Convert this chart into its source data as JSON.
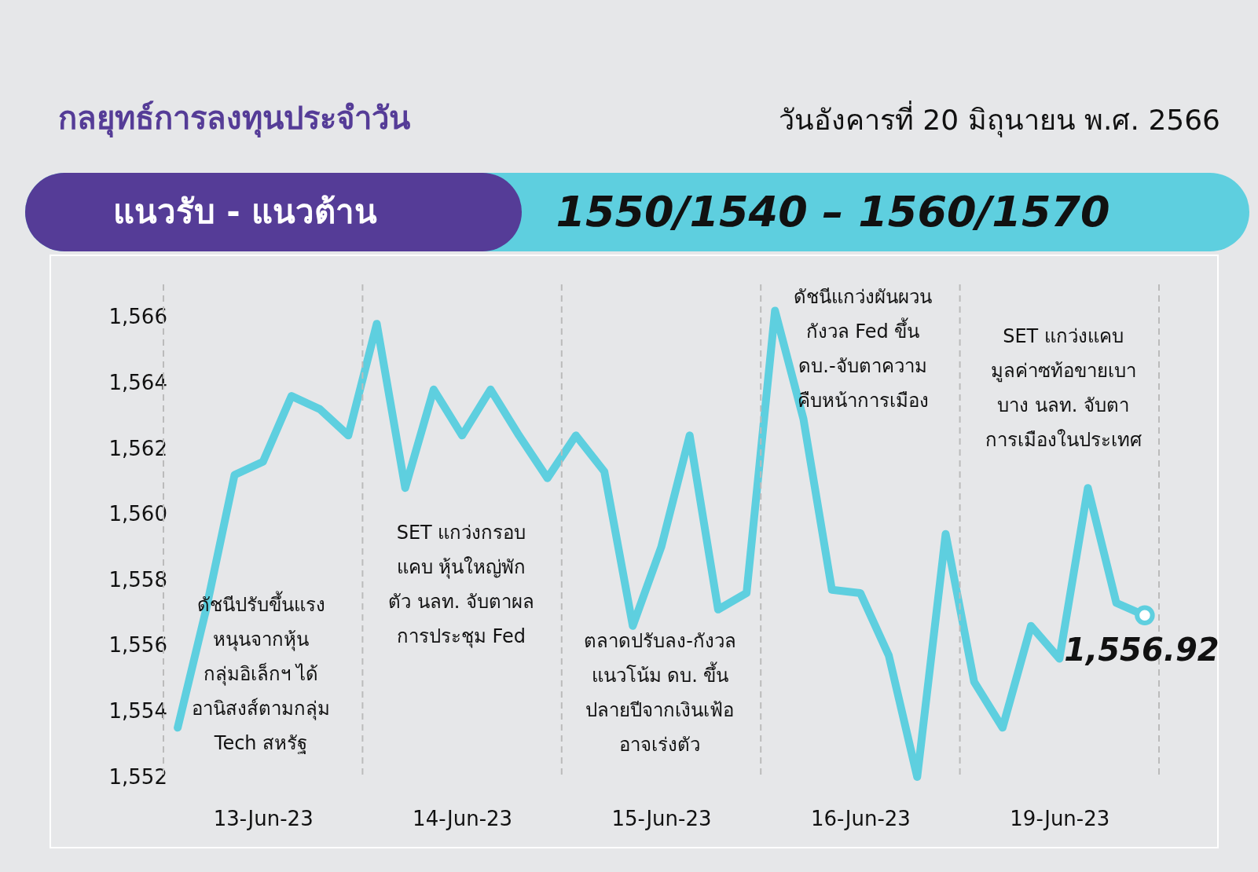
{
  "chart_data": {
    "type": "line",
    "title": "กลยุทธ์การลงทุนประจำวัน",
    "subtitle": "วันอังคารที่ 20 มิถุนายน พ.ศ. 2566",
    "annotations": [
      "แนวรับ - แนวต้าน",
      "1550/1540 – 1560/1570",
      "ดัชนีปรับขึ้นแรง\nหนุนจากหุ้น\nกลุ่มอิเล็กฯ ได้\nอานิสงส์ตามกลุ่ม\nTech สหรัฐ",
      "SET แกว่งกรอบ\nแคบ หุ้นใหญ่พัก\nตัว นลท. จับตาผล\nการประชุม Fed",
      "ตลาดปรับลง-กังวล\nแนวโน้ม ดบ. ขึ้น\nปลายปีจากเงินเฟ้อ\nอาจเร่งตัว",
      "ดัชนีแกว่งผันผวน\nกังวล Fed ขึ้น\nดบ.-จับตาความ\nคืบหน้าการเมือง",
      "SET แกว่งแคบ\nมูลค่าซท้อขายเบา\nบาง นลท. จับตา\nการเมืองในประเทศ"
    ],
    "categories": [
      null,
      null,
      null,
      "13-Jun-23",
      null,
      null,
      null,
      null,
      null,
      null,
      "14-Jun-23",
      null,
      null,
      null,
      null,
      null,
      null,
      "15-Jun-23",
      null,
      null,
      null,
      null,
      null,
      null,
      "16-Jun-23",
      null,
      null,
      null,
      null,
      null,
      null,
      "19-Jun-23",
      null,
      null,
      null
    ],
    "ylim": [
      1552,
      1567
    ],
    "yticks": [
      {
        "value": 1552,
        "label": "1,552"
      },
      {
        "value": 1554,
        "label": "1,554"
      },
      {
        "value": 1556,
        "label": "1,556"
      },
      {
        "value": 1558,
        "label": "1,558"
      },
      {
        "value": 1560,
        "label": "1,560"
      },
      {
        "value": 1562,
        "label": "1,562"
      },
      {
        "value": 1564,
        "label": "1,564"
      },
      {
        "value": 1566,
        "label": "1,566"
      }
    ],
    "line_style": "solid",
    "series": [
      {
        "color": "#5ecfdf",
        "values": [
          1553.5,
          1557.1,
          1561.2,
          1561.6,
          1563.6,
          1563.2,
          1562.4,
          1565.8,
          1560.8,
          1563.8,
          1562.4,
          1563.8,
          1562.4,
          1561.1,
          1562.4,
          1561.3,
          1556.6,
          1559,
          1562.4,
          1557.1,
          1557.6,
          1566.2,
          1562.9,
          1557.7,
          1557.6,
          1555.7,
          1552,
          1559.4,
          1554.9,
          1553.5,
          1556.6,
          1555.6,
          1560.8,
          1557.3,
          1556.92
        ],
        "value_labels": [
          null,
          null,
          null,
          null,
          null,
          null,
          null,
          null,
          null,
          null,
          null,
          null,
          null,
          null,
          null,
          null,
          null,
          null,
          null,
          null,
          null,
          null,
          null,
          null,
          null,
          null,
          null,
          null,
          null,
          null,
          null,
          null,
          null,
          null,
          "1,556.92"
        ]
      }
    ]
  }
}
